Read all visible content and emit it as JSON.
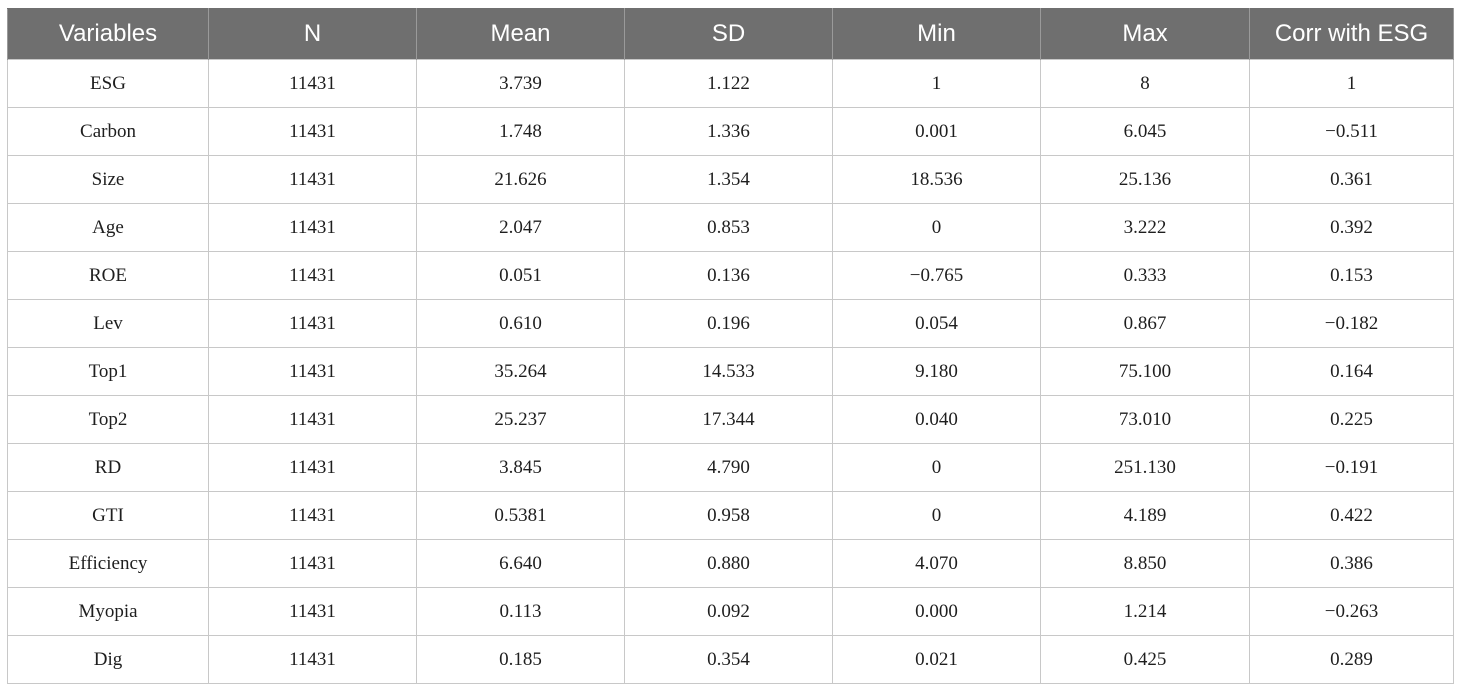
{
  "table": {
    "headers": [
      "Variables",
      "N",
      "Mean",
      "SD",
      "Min",
      "Max",
      "Corr with ESG"
    ],
    "rows": [
      [
        "ESG",
        "11431",
        "3.739",
        "1.122",
        "1",
        "8",
        "1"
      ],
      [
        "Carbon",
        "11431",
        "1.748",
        "1.336",
        "0.001",
        "6.045",
        "−0.511"
      ],
      [
        "Size",
        "11431",
        "21.626",
        "1.354",
        "18.536",
        "25.136",
        "0.361"
      ],
      [
        "Age",
        "11431",
        "2.047",
        "0.853",
        "0",
        "3.222",
        "0.392"
      ],
      [
        "ROE",
        "11431",
        "0.051",
        "0.136",
        "−0.765",
        "0.333",
        "0.153"
      ],
      [
        "Lev",
        "11431",
        "0.610",
        "0.196",
        "0.054",
        "0.867",
        "−0.182"
      ],
      [
        "Top1",
        "11431",
        "35.264",
        "14.533",
        "9.180",
        "75.100",
        "0.164"
      ],
      [
        "Top2",
        "11431",
        "25.237",
        "17.344",
        "0.040",
        "73.010",
        "0.225"
      ],
      [
        "RD",
        "11431",
        "3.845",
        "4.790",
        "0",
        "251.130",
        "−0.191"
      ],
      [
        "GTI",
        "11431",
        "0.5381",
        "0.958",
        "0",
        "4.189",
        "0.422"
      ],
      [
        "Efficiency",
        "11431",
        "6.640",
        "0.880",
        "4.070",
        "8.850",
        "0.386"
      ],
      [
        "Myopia",
        "11431",
        "0.113",
        "0.092",
        "0.000",
        "1.214",
        "−0.263"
      ],
      [
        "Dig",
        "11431",
        "0.185",
        "0.354",
        "0.021",
        "0.425",
        "0.289"
      ]
    ]
  },
  "colors": {
    "header_bg": "#6f6f6f",
    "header_text": "#ffffff",
    "grid": "#c8c8c8",
    "cell_text": "#1e1e1e"
  }
}
